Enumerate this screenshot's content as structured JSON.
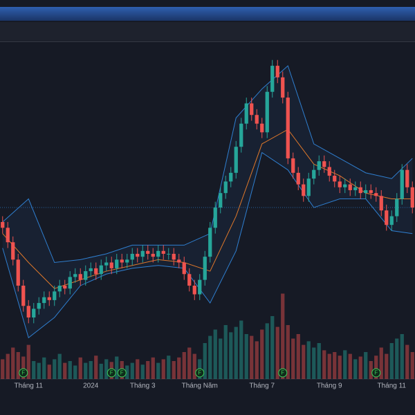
{
  "chart_data": {
    "type": "candlestick",
    "open": [
      40,
      38,
      33,
      27,
      18,
      11,
      7,
      10,
      12,
      14,
      13,
      16,
      18,
      17,
      21,
      22,
      20,
      23,
      24,
      22,
      25,
      26,
      24,
      27,
      26,
      27,
      29,
      28,
      30,
      29,
      28,
      30,
      29,
      29,
      27,
      26,
      22,
      18,
      15,
      20,
      28,
      38,
      45,
      50,
      54,
      57,
      66,
      74,
      81,
      77,
      74,
      71,
      85,
      94,
      90,
      83,
      62,
      57,
      53,
      49,
      55,
      58,
      61,
      59,
      56,
      54,
      52,
      53,
      51,
      52,
      50,
      51,
      50,
      49,
      44,
      39,
      42,
      48,
      58,
      52
    ],
    "high": [
      42,
      40,
      35,
      29,
      20,
      13,
      12,
      14,
      16,
      16,
      18,
      20,
      20,
      23,
      24,
      24,
      25,
      26,
      26,
      27,
      28,
      28,
      29,
      29,
      29,
      31,
      31,
      32,
      32,
      31,
      32,
      32,
      31,
      31,
      29,
      28,
      24,
      20,
      22,
      30,
      40,
      47,
      52,
      56,
      59,
      68,
      76,
      83,
      83,
      79,
      76,
      87,
      96,
      96,
      92,
      85,
      64,
      59,
      55,
      57,
      60,
      63,
      63,
      61,
      58,
      56,
      55,
      55,
      54,
      54,
      53,
      53,
      52,
      51,
      46,
      44,
      50,
      60,
      60,
      54
    ],
    "low": [
      36,
      31,
      25,
      16,
      9,
      5,
      5,
      8,
      10,
      11,
      11,
      14,
      15,
      15,
      19,
      18,
      18,
      21,
      20,
      20,
      23,
      22,
      22,
      24,
      24,
      25,
      26,
      26,
      27,
      26,
      26,
      27,
      27,
      25,
      24,
      20,
      16,
      13,
      13,
      18,
      26,
      36,
      43,
      48,
      52,
      55,
      64,
      72,
      75,
      72,
      69,
      69,
      83,
      88,
      81,
      60,
      55,
      51,
      47,
      47,
      53,
      56,
      57,
      54,
      52,
      50,
      50,
      49,
      49,
      48,
      48,
      48,
      47,
      42,
      37,
      37,
      40,
      46,
      50,
      43
    ],
    "close": [
      38,
      33,
      27,
      18,
      11,
      7,
      10,
      12,
      14,
      13,
      16,
      18,
      17,
      21,
      22,
      20,
      23,
      24,
      22,
      25,
      26,
      24,
      27,
      26,
      27,
      29,
      28,
      30,
      29,
      28,
      30,
      29,
      29,
      27,
      26,
      22,
      18,
      15,
      20,
      28,
      38,
      45,
      50,
      54,
      57,
      66,
      74,
      81,
      77,
      74,
      71,
      85,
      94,
      90,
      83,
      62,
      57,
      53,
      49,
      55,
      58,
      61,
      59,
      56,
      54,
      52,
      53,
      51,
      52,
      50,
      51,
      50,
      49,
      44,
      39,
      42,
      48,
      58,
      52,
      45
    ],
    "up_color": "#26a69a",
    "down_color": "#ef5350",
    "xlim": [
      -0.5,
      79.5
    ],
    "ylim": [
      -4,
      100
    ],
    "xticks": [
      {
        "value": 5,
        "label": "Tháng 11"
      },
      {
        "value": 17,
        "label": "2024"
      },
      {
        "value": 27,
        "label": "Tháng 3"
      },
      {
        "value": 38,
        "label": "Tháng Năm"
      },
      {
        "value": 50,
        "label": "Tháng 7"
      },
      {
        "value": 63,
        "label": "Tháng 9"
      },
      {
        "value": 75,
        "label": "Tháng 11"
      }
    ],
    "volume": {
      "values": [
        22,
        28,
        35,
        30,
        25,
        38,
        20,
        18,
        24,
        16,
        22,
        28,
        18,
        20,
        15,
        24,
        18,
        20,
        26,
        17,
        22,
        19,
        25,
        20,
        15,
        18,
        22,
        16,
        20,
        24,
        18,
        22,
        26,
        20,
        24,
        30,
        35,
        28,
        22,
        40,
        48,
        55,
        45,
        60,
        52,
        58,
        65,
        50,
        48,
        42,
        55,
        62,
        70,
        58,
        95,
        60,
        45,
        50,
        38,
        42,
        35,
        40,
        32,
        28,
        30,
        26,
        32,
        28,
        22,
        25,
        30,
        20,
        26,
        35,
        28,
        40,
        45,
        50,
        38,
        30
      ],
      "ylim": [
        0,
        100
      ]
    },
    "bands": {
      "x": [
        0,
        5,
        10,
        15,
        20,
        25,
        30,
        35,
        40,
        45,
        50,
        55,
        60,
        65,
        70,
        75,
        79
      ],
      "upper": [
        40,
        48,
        26,
        27,
        29,
        32,
        32,
        32,
        36,
        76,
        86,
        94,
        67,
        62,
        57,
        55,
        62
      ],
      "middle": [
        36,
        26,
        17,
        20,
        23,
        25,
        27,
        26,
        23,
        42,
        67,
        72,
        60,
        56,
        50,
        48,
        48
      ],
      "lower": [
        31,
        0,
        7,
        18,
        22,
        24,
        25,
        24,
        12,
        30,
        64,
        58,
        45,
        48,
        48,
        37,
        36
      ],
      "band_color": "#2f7fd0",
      "middle_color": "#e0782a"
    },
    "events": {
      "x": [
        4,
        21,
        23,
        38,
        54,
        72
      ],
      "labels": [
        "F",
        "F",
        "F",
        "F",
        "F",
        "F"
      ]
    }
  }
}
